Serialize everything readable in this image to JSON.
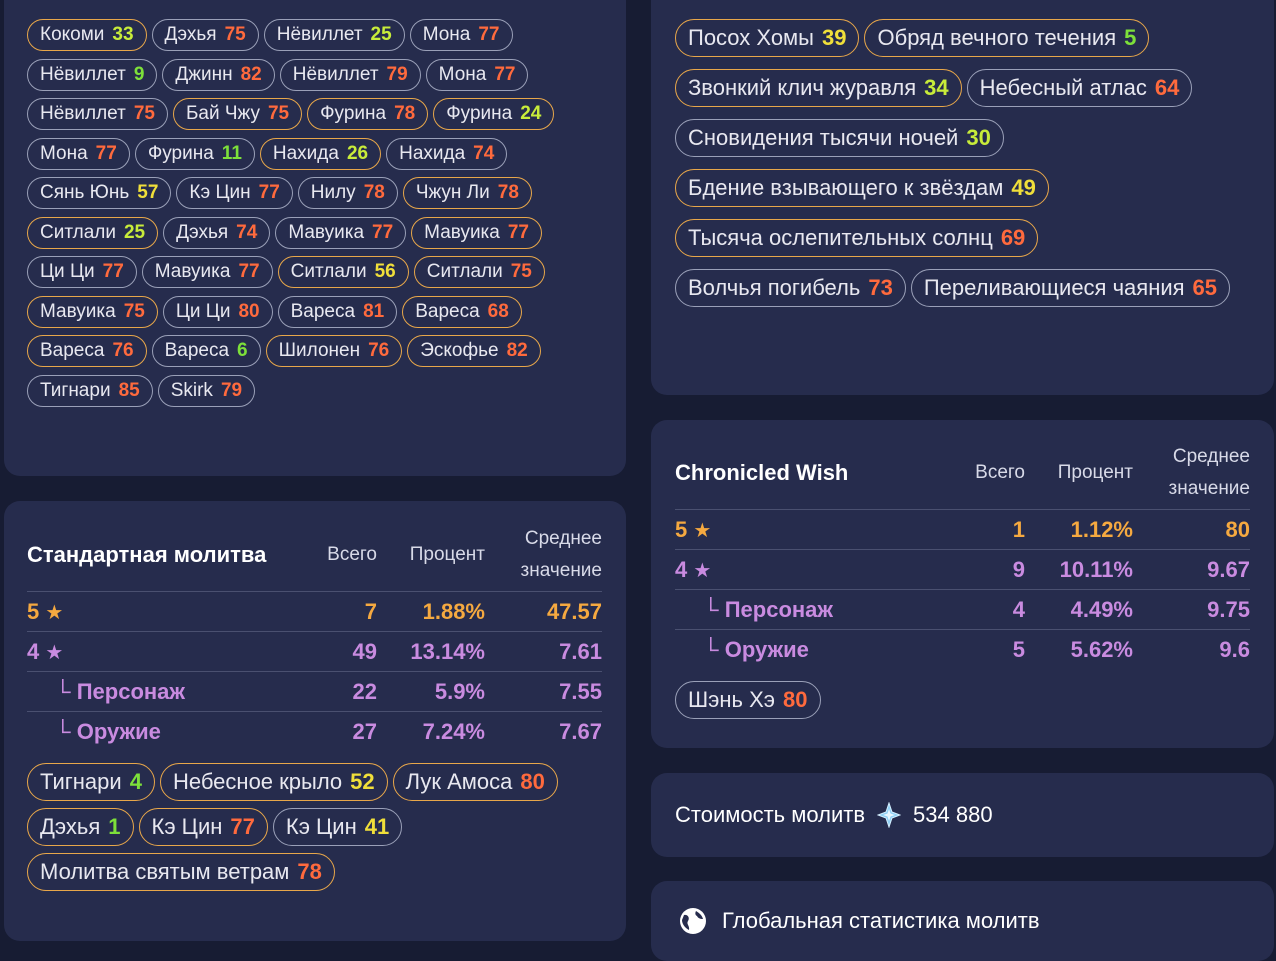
{
  "colors": {
    "background": "#171c33",
    "card": "#262c4d",
    "gold": "#f5a940",
    "purple": "#c98be0",
    "red": "#ff6a3d",
    "yellow": "#f0df3a",
    "green": "#7de03a"
  },
  "character_history": [
    {
      "name": "Кокоми",
      "count": "33",
      "color": "lime",
      "gold": true
    },
    {
      "name": "Дэхья",
      "count": "75",
      "color": "red",
      "gold": false
    },
    {
      "name": "Нёвиллет",
      "count": "25",
      "color": "lime",
      "gold": false
    },
    {
      "name": "Мона",
      "count": "77",
      "color": "red",
      "gold": false
    },
    {
      "name": "Нёвиллет",
      "count": "9",
      "color": "grn",
      "gold": false
    },
    {
      "name": "Джинн",
      "count": "82",
      "color": "red",
      "gold": false
    },
    {
      "name": "Нёвиллет",
      "count": "79",
      "color": "red",
      "gold": false
    },
    {
      "name": "Мона",
      "count": "77",
      "color": "red",
      "gold": false
    },
    {
      "name": "Нёвиллет",
      "count": "75",
      "color": "red",
      "gold": false
    },
    {
      "name": "Бай Чжу",
      "count": "75",
      "color": "red",
      "gold": true
    },
    {
      "name": "Фурина",
      "count": "78",
      "color": "red",
      "gold": true
    },
    {
      "name": "Фурина",
      "count": "24",
      "color": "lime",
      "gold": true
    },
    {
      "name": "Мона",
      "count": "77",
      "color": "red",
      "gold": false
    },
    {
      "name": "Фурина",
      "count": "11",
      "color": "grn",
      "gold": false
    },
    {
      "name": "Нахида",
      "count": "26",
      "color": "lime",
      "gold": true
    },
    {
      "name": "Нахида",
      "count": "74",
      "color": "red",
      "gold": false
    },
    {
      "name": "Сянь Юнь",
      "count": "57",
      "color": "yel",
      "gold": false
    },
    {
      "name": "Кэ Цин",
      "count": "77",
      "color": "red",
      "gold": false
    },
    {
      "name": "Нилу",
      "count": "78",
      "color": "red",
      "gold": false
    },
    {
      "name": "Чжун Ли",
      "count": "78",
      "color": "red",
      "gold": true
    },
    {
      "name": "Ситлали",
      "count": "25",
      "color": "lime",
      "gold": true
    },
    {
      "name": "Дэхья",
      "count": "74",
      "color": "red",
      "gold": false
    },
    {
      "name": "Мавуика",
      "count": "77",
      "color": "red",
      "gold": false
    },
    {
      "name": "Мавуика",
      "count": "77",
      "color": "red",
      "gold": true
    },
    {
      "name": "Ци Ци",
      "count": "77",
      "color": "red",
      "gold": false
    },
    {
      "name": "Мавуика",
      "count": "77",
      "color": "red",
      "gold": false
    },
    {
      "name": "Ситлали",
      "count": "56",
      "color": "yel",
      "gold": true
    },
    {
      "name": "Ситлали",
      "count": "75",
      "color": "red",
      "gold": true
    },
    {
      "name": "Мавуика",
      "count": "75",
      "color": "red",
      "gold": true
    },
    {
      "name": "Ци Ци",
      "count": "80",
      "color": "red",
      "gold": false
    },
    {
      "name": "Вареса",
      "count": "81",
      "color": "red",
      "gold": false
    },
    {
      "name": "Вареса",
      "count": "68",
      "color": "red",
      "gold": true
    },
    {
      "name": "Вареса",
      "count": "76",
      "color": "red",
      "gold": true
    },
    {
      "name": "Вареса",
      "count": "6",
      "color": "grn",
      "gold": false
    },
    {
      "name": "Шилонен",
      "count": "76",
      "color": "red",
      "gold": true
    },
    {
      "name": "Эскофье",
      "count": "82",
      "color": "red",
      "gold": true
    },
    {
      "name": "Тигнари",
      "count": "85",
      "color": "red",
      "gold": false
    },
    {
      "name": "Skirk",
      "count": "79",
      "color": "red",
      "gold": false
    }
  ],
  "weapon_history": [
    {
      "name": "Посох Хомы",
      "count": "39",
      "color": "yel",
      "gold": true
    },
    {
      "name": "Обряд вечного течения",
      "count": "5",
      "color": "grn",
      "gold": true
    },
    {
      "name": "Звонкий клич журавля",
      "count": "34",
      "color": "lime",
      "gold": true
    },
    {
      "name": "Небесный атлас",
      "count": "64",
      "color": "red",
      "gold": false
    },
    {
      "name": "Сновидения тысячи ночей",
      "count": "30",
      "color": "lime",
      "gold": false
    },
    {
      "name": "Бдение взывающего к звёздам",
      "count": "49",
      "color": "yel",
      "gold": true
    },
    {
      "name": "Тысяча ослепительных солнц",
      "count": "69",
      "color": "red",
      "gold": true
    },
    {
      "name": "Волчья погибель",
      "count": "73",
      "color": "red",
      "gold": false
    },
    {
      "name": "Переливающиеся чаяния",
      "count": "65",
      "color": "red",
      "gold": false
    }
  ],
  "standard": {
    "title": "Стандартная молитва",
    "headers": {
      "total": "Всего",
      "percent": "Процент",
      "average": "Среднее значение"
    },
    "rows": {
      "five": {
        "label": "5",
        "total": "7",
        "percent": "1.88%",
        "average": "47.57"
      },
      "four": {
        "label": "4",
        "total": "49",
        "percent": "13.14%",
        "average": "7.61"
      },
      "character": {
        "label": "Персонаж",
        "total": "22",
        "percent": "5.9%",
        "average": "7.55"
      },
      "weapon": {
        "label": "Оружие",
        "total": "27",
        "percent": "7.24%",
        "average": "7.67"
      }
    },
    "history": [
      {
        "name": "Тигнари",
        "count": "4",
        "color": "grn",
        "gold": true
      },
      {
        "name": "Небесное крыло",
        "count": "52",
        "color": "yel",
        "gold": true
      },
      {
        "name": "Лук Амоса",
        "count": "80",
        "color": "red",
        "gold": true
      },
      {
        "name": "Дэхья",
        "count": "1",
        "color": "grn",
        "gold": true
      },
      {
        "name": "Кэ Цин",
        "count": "77",
        "color": "red",
        "gold": true
      },
      {
        "name": "Кэ Цин",
        "count": "41",
        "color": "yel",
        "gold": false
      },
      {
        "name": "Молитва святым ветрам",
        "count": "78",
        "color": "red",
        "gold": true
      }
    ]
  },
  "chronicled": {
    "title": "Chronicled Wish",
    "headers": {
      "total": "Всего",
      "percent": "Процент",
      "average": "Среднее значение"
    },
    "rows": {
      "five": {
        "label": "5",
        "total": "1",
        "percent": "1.12%",
        "average": "80"
      },
      "four": {
        "label": "4",
        "total": "9",
        "percent": "10.11%",
        "average": "9.67"
      },
      "character": {
        "label": "Персонаж",
        "total": "4",
        "percent": "4.49%",
        "average": "9.75"
      },
      "weapon": {
        "label": "Оружие",
        "total": "5",
        "percent": "5.62%",
        "average": "9.6"
      }
    },
    "history": [
      {
        "name": "Шэнь Хэ",
        "count": "80",
        "color": "red",
        "gold": false
      }
    ]
  },
  "cost": {
    "label": "Стоимость молитв",
    "value": "534 880",
    "icon": "primogem-icon"
  },
  "global": {
    "label": "Глобальная статистика молитв",
    "icon": "globe-icon"
  }
}
